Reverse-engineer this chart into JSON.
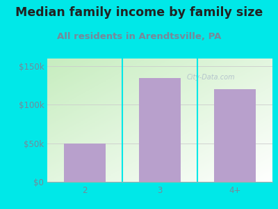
{
  "title": "Median family income by family size",
  "subtitle": "All residents in Arendtsville, PA",
  "categories": [
    "2",
    "3",
    "4+"
  ],
  "values": [
    50000,
    135000,
    120000
  ],
  "bar_color": "#b8a0cc",
  "background_color": "#00e8e8",
  "title_color": "#222222",
  "subtitle_color": "#778899",
  "tick_label_color": "#778899",
  "ylim": [
    0,
    160000
  ],
  "yticks": [
    0,
    50000,
    100000,
    150000
  ],
  "ytick_labels": [
    "$0",
    "$50k",
    "$100k",
    "$150k"
  ],
  "watermark": "City-Data.com",
  "title_fontsize": 12.5,
  "subtitle_fontsize": 9.5,
  "tick_fontsize": 8.5,
  "divider_color": "#00e8e8",
  "grid_color": "#cccccc",
  "plot_bg_left": "#c8e8c0",
  "plot_bg_right": "#f0f8ff"
}
